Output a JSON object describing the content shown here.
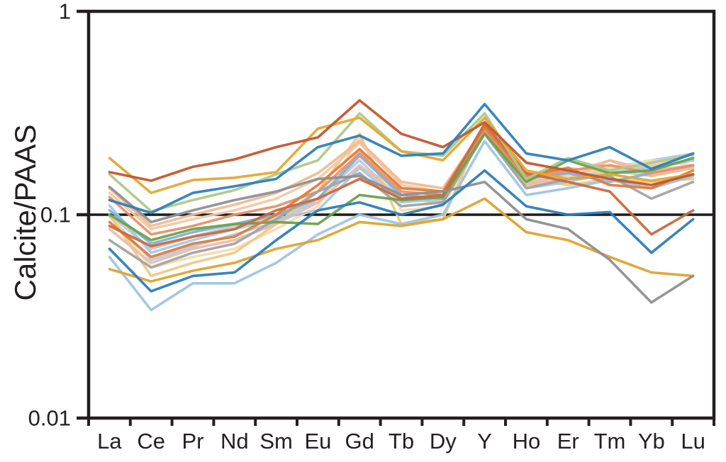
{
  "figure": {
    "background": "#ffffff",
    "axis_color": "#231f20",
    "reference_line_color": "#1a1a1a"
  },
  "chart_data": {
    "type": "line",
    "title": "",
    "xlabel": "",
    "ylabel": "Calcite/PAAS",
    "y_scale": "log",
    "ylim": [
      0.01,
      1
    ],
    "y_ticks": [
      {
        "value": 1,
        "label": "1"
      },
      {
        "value": 0.1,
        "label": "0.1"
      },
      {
        "value": 0.01,
        "label": "0.01"
      }
    ],
    "reference_line_y": 0.1,
    "grid": false,
    "legend_position": "none",
    "categories": [
      "La",
      "Ce",
      "Pr",
      "Nd",
      "Sm",
      "Eu",
      "Gd",
      "Tb",
      "Dy",
      "Y",
      "Ho",
      "Er",
      "Tm",
      "Yb",
      "Lu"
    ],
    "series": [
      {
        "color": "#c9c9c9",
        "values": [
          0.1,
          0.068,
          0.078,
          0.088,
          0.098,
          0.115,
          0.205,
          0.12,
          0.118,
          0.255,
          0.14,
          0.15,
          0.165,
          0.155,
          0.17
        ]
      },
      {
        "color": "#b7cbde",
        "values": [
          0.098,
          0.06,
          0.07,
          0.08,
          0.092,
          0.12,
          0.185,
          0.118,
          0.122,
          0.26,
          0.145,
          0.155,
          0.17,
          0.185,
          0.2
        ]
      },
      {
        "color": "#f3dcae",
        "values": [
          0.1,
          0.055,
          0.062,
          0.068,
          0.085,
          0.11,
          0.24,
          0.105,
          0.11,
          0.26,
          0.14,
          0.155,
          0.17,
          0.185,
          0.175
        ]
      },
      {
        "color": "#eec985",
        "values": [
          0.1,
          0.05,
          0.058,
          0.065,
          0.09,
          0.13,
          0.25,
          0.09,
          0.095,
          0.28,
          0.15,
          0.14,
          0.15,
          0.145,
          0.15
        ]
      },
      {
        "color": "#f1c9a5",
        "values": [
          0.128,
          0.085,
          0.095,
          0.105,
          0.12,
          0.15,
          0.225,
          0.14,
          0.13,
          0.27,
          0.15,
          0.17,
          0.16,
          0.175,
          0.185
        ]
      },
      {
        "color": "#ecbcab",
        "values": [
          0.085,
          0.058,
          0.068,
          0.075,
          0.09,
          0.115,
          0.175,
          0.12,
          0.115,
          0.255,
          0.14,
          0.15,
          0.185,
          0.165,
          0.175
        ]
      },
      {
        "color": "#f0bb96",
        "values": [
          0.135,
          0.088,
          0.1,
          0.112,
          0.128,
          0.16,
          0.23,
          0.145,
          0.135,
          0.27,
          0.14,
          0.16,
          0.185,
          0.155,
          0.17
        ]
      },
      {
        "color": "#a6c9e4",
        "values": [
          0.111,
          0.065,
          0.075,
          0.085,
          0.095,
          0.105,
          0.17,
          0.115,
          0.12,
          0.25,
          0.135,
          0.145,
          0.16,
          0.17,
          0.185
        ]
      },
      {
        "color": "#7fb2d8",
        "values": [
          0.105,
          0.072,
          0.082,
          0.09,
          0.1,
          0.12,
          0.195,
          0.125,
          0.12,
          0.26,
          0.15,
          0.16,
          0.145,
          0.16,
          0.175
        ]
      },
      {
        "color": "#9ec5e2",
        "values": [
          0.062,
          0.034,
          0.046,
          0.046,
          0.058,
          0.08,
          0.1,
          0.09,
          0.1,
          0.23,
          0.125,
          0.135,
          0.148,
          0.135,
          0.155
        ]
      },
      {
        "color": "#e8916a",
        "values": [
          0.122,
          0.08,
          0.088,
          0.1,
          0.11,
          0.13,
          0.2,
          0.13,
          0.125,
          0.26,
          0.15,
          0.165,
          0.175,
          0.16,
          0.175
        ]
      },
      {
        "color": "#a3a3a3",
        "values": [
          0.075,
          0.055,
          0.065,
          0.072,
          0.095,
          0.13,
          0.16,
          0.11,
          0.115,
          0.25,
          0.135,
          0.15,
          0.155,
          0.12,
          0.145
        ]
      },
      {
        "color": "#6ba24b",
        "values": [
          0.1,
          0.075,
          0.085,
          0.09,
          0.092,
          0.09,
          0.125,
          0.118,
          0.122,
          0.25,
          0.145,
          0.185,
          0.16,
          0.165,
          0.19
        ]
      },
      {
        "color": "#e07b3a",
        "values": [
          0.092,
          0.062,
          0.072,
          0.078,
          0.1,
          0.14,
          0.21,
          0.135,
          0.13,
          0.27,
          0.155,
          0.17,
          0.14,
          0.135,
          0.165
        ]
      },
      {
        "color": "#c96a3e",
        "values": [
          0.088,
          0.07,
          0.078,
          0.085,
          0.105,
          0.12,
          0.15,
          0.12,
          0.125,
          0.28,
          0.16,
          0.145,
          0.13,
          0.08,
          0.105
        ]
      },
      {
        "color": "#dfa32f",
        "values": [
          0.054,
          0.047,
          0.053,
          0.058,
          0.068,
          0.075,
          0.092,
          0.088,
          0.095,
          0.12,
          0.082,
          0.075,
          0.062,
          0.052,
          0.05
        ]
      },
      {
        "color": "#8f8f8f",
        "values": [
          0.137,
          0.092,
          0.105,
          0.118,
          0.13,
          0.15,
          0.155,
          0.125,
          0.13,
          0.145,
          0.095,
          0.085,
          0.06,
          0.037,
          0.05
        ]
      },
      {
        "color": "#2d7dbb",
        "values": [
          0.068,
          0.042,
          0.05,
          0.052,
          0.075,
          0.105,
          0.115,
          0.1,
          0.112,
          0.165,
          0.11,
          0.1,
          0.103,
          0.065,
          0.095
        ]
      },
      {
        "color": "#adc98b",
        "values": [
          0.158,
          0.104,
          0.118,
          0.132,
          0.158,
          0.185,
          0.315,
          0.205,
          0.195,
          0.315,
          0.15,
          0.19,
          0.165,
          0.18,
          0.197
        ]
      },
      {
        "color": "#e6a733",
        "values": [
          0.19,
          0.128,
          0.148,
          0.152,
          0.162,
          0.265,
          0.3,
          0.205,
          0.185,
          0.3,
          0.165,
          0.15,
          0.158,
          0.147,
          0.158
        ]
      },
      {
        "color": "#c1572e",
        "values": [
          0.162,
          0.147,
          0.172,
          0.187,
          0.215,
          0.24,
          0.365,
          0.25,
          0.215,
          0.285,
          0.18,
          0.165,
          0.15,
          0.14,
          0.158
        ]
      },
      {
        "color": "#2e7ebc",
        "values": [
          0.118,
          0.102,
          0.128,
          0.138,
          0.15,
          0.215,
          0.245,
          0.195,
          0.2,
          0.35,
          0.2,
          0.185,
          0.215,
          0.168,
          0.2
        ]
      }
    ]
  }
}
